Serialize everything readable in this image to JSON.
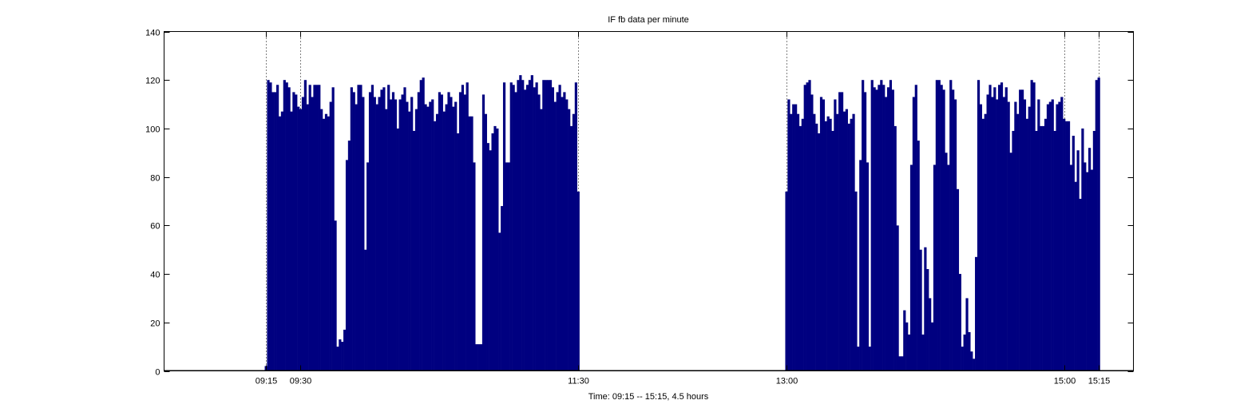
{
  "chart_data": {
    "type": "bar",
    "title": "IF fb data per minute",
    "xlabel": "Time: 09:15 -- 15:15,  4.5 hours",
    "ylabel": "",
    "ylim": [
      0,
      140
    ],
    "yticks": [
      0,
      20,
      40,
      60,
      80,
      100,
      120,
      140
    ],
    "xlim_minutes_of_day": [
      511,
      930
    ],
    "xticks": [
      {
        "label": "09:15",
        "minute": 555
      },
      {
        "label": "09:30",
        "minute": 570
      },
      {
        "label": "11:30",
        "minute": 690
      },
      {
        "label": "13:00",
        "minute": 780
      },
      {
        "label": "15:00",
        "minute": 900
      },
      {
        "label": "15:15",
        "minute": 915
      }
    ],
    "grid": false,
    "bar_color": "#000080",
    "series": [
      {
        "name": "session-1",
        "start_minute": 555,
        "step_minutes": 1,
        "values": [
          2,
          120,
          119,
          115,
          115,
          118,
          105,
          107,
          120,
          119,
          117,
          107,
          115,
          114,
          109,
          108,
          113,
          120,
          110,
          118,
          113,
          118,
          118,
          118,
          108,
          104,
          106,
          105,
          111,
          117,
          62,
          10,
          13,
          12,
          17,
          87,
          95,
          117,
          115,
          110,
          118,
          118,
          113,
          50,
          86,
          115,
          118,
          113,
          110,
          113,
          116,
          117,
          108,
          118,
          112,
          115,
          112,
          100,
          112,
          114,
          117,
          111,
          107,
          113,
          99,
          108,
          115,
          120,
          121,
          110,
          109,
          111,
          112,
          103,
          106,
          115,
          114,
          107,
          110,
          115,
          113,
          109,
          111,
          98,
          115,
          118,
          114,
          119,
          105,
          105,
          86,
          11,
          11,
          11,
          114,
          106,
          94,
          91,
          98,
          101,
          100,
          57,
          68,
          119,
          86,
          86,
          119,
          118,
          115,
          120,
          122,
          120,
          116,
          118,
          120,
          122,
          117,
          119,
          114,
          108,
          120,
          120,
          120,
          120,
          117,
          111,
          115,
          118,
          113,
          115,
          112,
          108,
          101,
          106,
          119,
          74
        ]
      },
      {
        "name": "session-2",
        "start_minute": 780,
        "step_minutes": 1,
        "values": [
          74,
          112,
          106,
          110,
          110,
          106,
          101,
          104,
          118,
          119,
          120,
          114,
          106,
          102,
          98,
          113,
          112,
          103,
          105,
          104,
          99,
          112,
          106,
          115,
          115,
          107,
          108,
          102,
          104,
          106,
          74,
          10,
          87,
          120,
          115,
          86,
          10,
          120,
          117,
          116,
          118,
          120,
          118,
          113,
          117,
          120,
          116,
          101,
          60,
          6,
          6,
          25,
          20,
          15,
          85,
          113,
          118,
          95,
          50,
          15,
          51,
          42,
          30,
          20,
          85,
          120,
          120,
          118,
          116,
          90,
          85,
          120,
          116,
          112,
          75,
          40,
          10,
          15,
          30,
          16,
          8,
          5,
          47,
          120,
          110,
          104,
          106,
          114,
          118,
          113,
          117,
          112,
          118,
          119,
          113,
          117,
          111,
          90,
          99,
          111,
          106,
          116,
          116,
          112,
          104,
          109,
          120,
          119,
          99,
          112,
          101,
          101,
          104,
          110,
          111,
          112,
          99,
          110,
          111,
          113,
          104,
          103,
          103,
          85,
          97,
          78,
          91,
          71,
          100,
          86,
          82,
          92,
          83,
          99,
          120,
          121
        ]
      }
    ]
  }
}
